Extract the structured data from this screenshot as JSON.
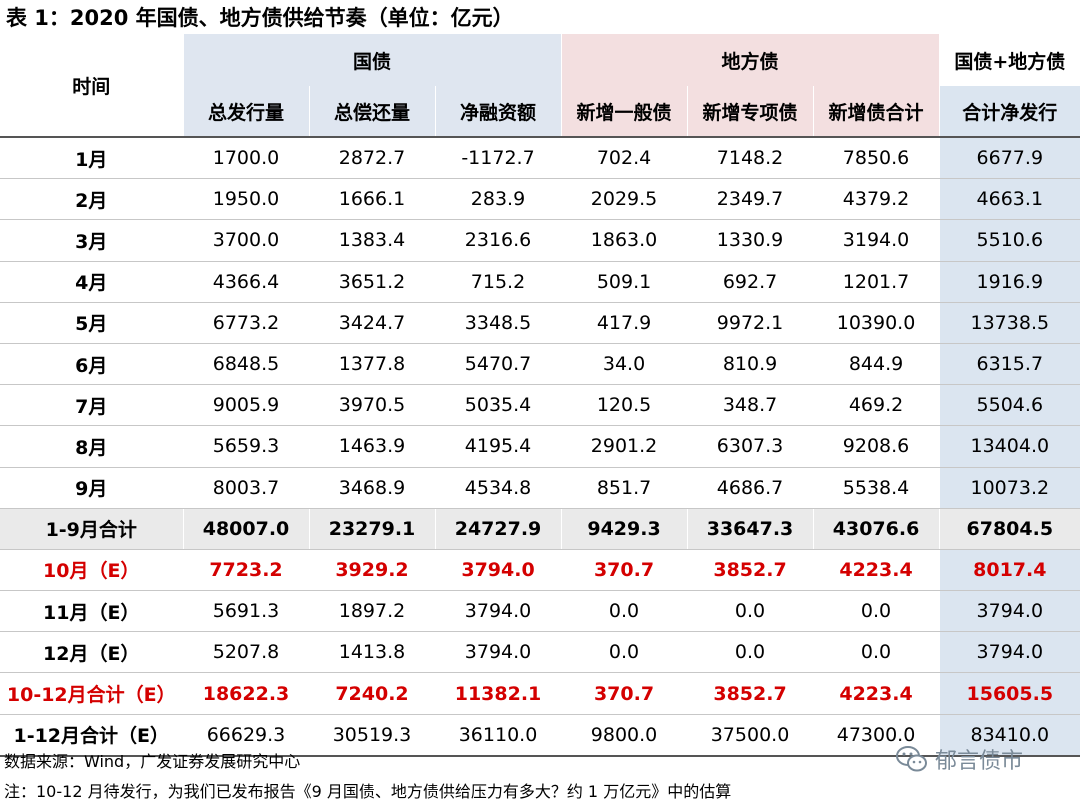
{
  "title": "表 1：2020 年国债、地方债供给节奏（单位：亿元）",
  "headers": {
    "time": "时间",
    "group_guo": "国债",
    "group_di": "地方债",
    "group_total": "国债+地方债",
    "cols": [
      "总发行量",
      "总偿还量",
      "净融资额",
      "新增一般债",
      "新增专项债",
      "新增债合计",
      "合计净发行"
    ]
  },
  "rows": [
    {
      "label": "1月",
      "values": [
        "1700.0",
        "2872.7",
        "-1172.7",
        "702.4",
        "7148.2",
        "7850.6",
        "6677.9"
      ]
    },
    {
      "label": "2月",
      "values": [
        "1950.0",
        "1666.1",
        "283.9",
        "2029.5",
        "2349.7",
        "4379.2",
        "4663.1"
      ]
    },
    {
      "label": "3月",
      "values": [
        "3700.0",
        "1383.4",
        "2316.6",
        "1863.0",
        "1330.9",
        "3194.0",
        "5510.6"
      ]
    },
    {
      "label": "4月",
      "values": [
        "4366.4",
        "3651.2",
        "715.2",
        "509.1",
        "692.7",
        "1201.7",
        "1916.9"
      ]
    },
    {
      "label": "5月",
      "values": [
        "6773.2",
        "3424.7",
        "3348.5",
        "417.9",
        "9972.1",
        "10390.0",
        "13738.5"
      ]
    },
    {
      "label": "6月",
      "values": [
        "6848.5",
        "1377.8",
        "5470.7",
        "34.0",
        "810.9",
        "844.9",
        "6315.7"
      ]
    },
    {
      "label": "7月",
      "values": [
        "9005.9",
        "3970.5",
        "5035.4",
        "120.5",
        "348.7",
        "469.2",
        "5504.6"
      ]
    },
    {
      "label": "8月",
      "values": [
        "5659.3",
        "1463.9",
        "4195.4",
        "2901.2",
        "6307.3",
        "9208.6",
        "13404.0"
      ]
    },
    {
      "label": "9月",
      "values": [
        "8003.7",
        "3468.9",
        "4534.8",
        "851.7",
        "4686.7",
        "5538.4",
        "10073.2"
      ]
    },
    {
      "label": "1-9月合计",
      "values": [
        "48007.0",
        "23279.1",
        "24727.9",
        "9429.3",
        "33647.3",
        "43076.6",
        "67804.5"
      ]
    },
    {
      "label": "10月（E）",
      "values": [
        "7723.2",
        "3929.2",
        "3794.0",
        "370.7",
        "3852.7",
        "4223.4",
        "8017.4"
      ]
    },
    {
      "label": "11月（E）",
      "values": [
        "5691.3",
        "1897.2",
        "3794.0",
        "0.0",
        "0.0",
        "0.0",
        "3794.0"
      ]
    },
    {
      "label": "12月（E）",
      "values": [
        "5207.8",
        "1413.8",
        "3794.0",
        "0.0",
        "0.0",
        "0.0",
        "3794.0"
      ]
    },
    {
      "label": "10-12月合计（E）",
      "values": [
        "18622.3",
        "7240.2",
        "11382.1",
        "370.7",
        "3852.7",
        "4223.4",
        "15605.5"
      ]
    },
    {
      "label": "1-12月合计（E）",
      "values": [
        "66629.3",
        "30519.3",
        "36110.0",
        "9800.0",
        "37500.0",
        "47300.0",
        "83410.0"
      ]
    }
  ],
  "footer": {
    "source": "数据来源：Wind，广发证券发展研究中心",
    "note": "注：10-12 月待发行，为我们已发布报告《9 月国债、地方债供给压力有多大？约 1 万亿元》中的估算"
  },
  "watermark": {
    "text": "郁言债市",
    "icon": "wechat-icon"
  },
  "colors": {
    "guo_header": "#dfe6f0",
    "di_header": "#f3dfe0",
    "total_col": "#dbe5f0",
    "sum_row": "#eaeaea",
    "estimate_red": "#d40000"
  }
}
